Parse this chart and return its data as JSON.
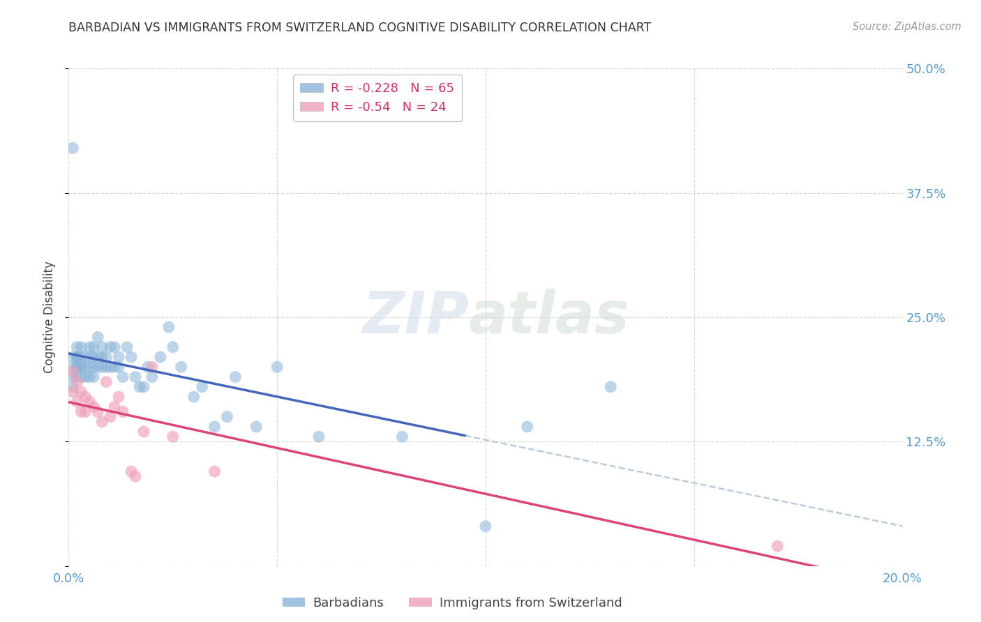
{
  "title": "BARBADIAN VS IMMIGRANTS FROM SWITZERLAND COGNITIVE DISABILITY CORRELATION CHART",
  "source": "Source: ZipAtlas.com",
  "ylabel": "Cognitive Disability",
  "xlim": [
    0.0,
    0.2
  ],
  "ylim": [
    0.0,
    0.5
  ],
  "yticks": [
    0.0,
    0.125,
    0.25,
    0.375,
    0.5
  ],
  "ytick_labels": [
    "",
    "12.5%",
    "25.0%",
    "37.5%",
    "50.0%"
  ],
  "xticks": [
    0.0,
    0.05,
    0.1,
    0.15,
    0.2
  ],
  "xtick_labels": [
    "0.0%",
    "",
    "",
    "",
    "20.0%"
  ],
  "background_color": "#ffffff",
  "grid_color": "#d0d0d0",
  "series1_label": "Barbadians",
  "series2_label": "Immigrants from Switzerland",
  "series1_color": "#8ab4d8",
  "series2_color": "#f0a0b8",
  "series1_line_color": "#4466bb",
  "series2_line_color": "#dd4477",
  "dash_color": "#bbccdd",
  "tick_color": "#5599cc",
  "series1_R": -0.228,
  "series1_N": 65,
  "series2_R": -0.54,
  "series2_N": 24,
  "series1_x": [
    0.001,
    0.001,
    0.001,
    0.001,
    0.001,
    0.002,
    0.002,
    0.002,
    0.002,
    0.002,
    0.002,
    0.003,
    0.003,
    0.003,
    0.003,
    0.003,
    0.004,
    0.004,
    0.004,
    0.005,
    0.005,
    0.005,
    0.005,
    0.006,
    0.006,
    0.006,
    0.006,
    0.007,
    0.007,
    0.007,
    0.008,
    0.008,
    0.008,
    0.009,
    0.009,
    0.01,
    0.01,
    0.011,
    0.011,
    0.012,
    0.012,
    0.013,
    0.014,
    0.015,
    0.016,
    0.017,
    0.018,
    0.019,
    0.02,
    0.022,
    0.024,
    0.025,
    0.027,
    0.03,
    0.032,
    0.035,
    0.038,
    0.04,
    0.045,
    0.05,
    0.06,
    0.08,
    0.1,
    0.11,
    0.13
  ],
  "series1_y": [
    0.42,
    0.21,
    0.2,
    0.19,
    0.18,
    0.22,
    0.21,
    0.2,
    0.19,
    0.2,
    0.21,
    0.21,
    0.2,
    0.19,
    0.22,
    0.2,
    0.21,
    0.2,
    0.19,
    0.21,
    0.2,
    0.22,
    0.19,
    0.2,
    0.19,
    0.22,
    0.21,
    0.2,
    0.21,
    0.23,
    0.21,
    0.2,
    0.22,
    0.2,
    0.21,
    0.2,
    0.22,
    0.22,
    0.2,
    0.21,
    0.2,
    0.19,
    0.22,
    0.21,
    0.19,
    0.18,
    0.18,
    0.2,
    0.19,
    0.21,
    0.24,
    0.22,
    0.2,
    0.17,
    0.18,
    0.14,
    0.15,
    0.19,
    0.14,
    0.2,
    0.13,
    0.13,
    0.04,
    0.14,
    0.18
  ],
  "series2_x": [
    0.001,
    0.001,
    0.002,
    0.002,
    0.003,
    0.003,
    0.004,
    0.004,
    0.005,
    0.006,
    0.007,
    0.008,
    0.009,
    0.01,
    0.011,
    0.012,
    0.013,
    0.015,
    0.016,
    0.018,
    0.02,
    0.025,
    0.035,
    0.17
  ],
  "series2_y": [
    0.195,
    0.175,
    0.185,
    0.165,
    0.175,
    0.155,
    0.17,
    0.155,
    0.165,
    0.16,
    0.155,
    0.145,
    0.185,
    0.15,
    0.16,
    0.17,
    0.155,
    0.095,
    0.09,
    0.135,
    0.2,
    0.13,
    0.095,
    0.02
  ],
  "blue_line_x_end": 0.095,
  "pink_line_x_end": 0.195
}
